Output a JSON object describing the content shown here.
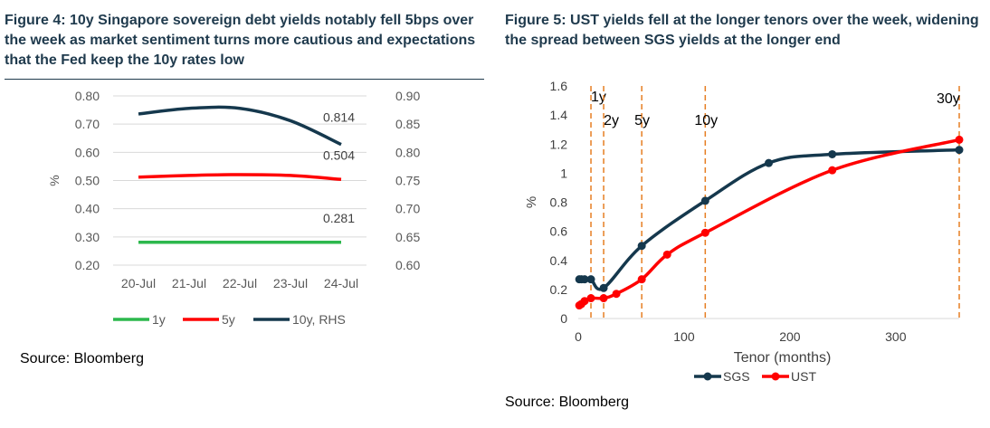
{
  "figure4": {
    "title": "Figure 4: 10y Singapore sovereign debt yields notably fell 5bps over the week as market sentiment turns more cautious and expectations that the Fed keep the 10y rates low",
    "source": "Source: Bloomberg"
  },
  "figure5": {
    "title": "Figure 5: UST yields fell at the longer tenors over the week, widening the spread between SGS yields at the longer end",
    "source": "Source: Bloomberg"
  },
  "chart_data": [
    {
      "type": "line",
      "categories": [
        "20-Jul",
        "21-Jul",
        "22-Jul",
        "23-Jul",
        "24-Jul"
      ],
      "ylabel": "%",
      "ylim": [
        0.2,
        0.8
      ],
      "y_ticks": [
        "0.80",
        "0.70",
        "0.60",
        "0.50",
        "0.40",
        "0.30",
        "0.20"
      ],
      "y2lim": [
        0.6,
        0.9
      ],
      "y2_ticks": [
        "0.90",
        "0.85",
        "0.80",
        "0.75",
        "0.70",
        "0.65",
        "0.60"
      ],
      "grid": true,
      "legend_position": "bottom",
      "series": [
        {
          "name": "1y",
          "axis": "left",
          "color": "#2db84d",
          "values": [
            0.281,
            0.281,
            0.281,
            0.281,
            0.281
          ]
        },
        {
          "name": "5y",
          "axis": "left",
          "color": "#ff0000",
          "values": [
            0.512,
            0.518,
            0.521,
            0.518,
            0.504
          ]
        },
        {
          "name": "10y, RHS",
          "axis": "right",
          "color": "#15384d",
          "values": [
            0.868,
            0.878,
            0.878,
            0.856,
            0.814
          ]
        }
      ],
      "data_labels": [
        {
          "series": "10y, RHS",
          "text": "0.814"
        },
        {
          "series": "5y",
          "text": "0.504"
        },
        {
          "series": "1y",
          "text": "0.281"
        }
      ]
    },
    {
      "type": "line",
      "xlabel": "Tenor (months)",
      "ylabel": "%",
      "xlim": [
        0,
        360
      ],
      "ylim": [
        0,
        1.6
      ],
      "x_ticks": [
        "0",
        "100",
        "200",
        "300"
      ],
      "y_ticks": [
        "1.6",
        "1.4",
        "1.2",
        "1",
        "0.8",
        "0.6",
        "0.4",
        "0.2",
        "0"
      ],
      "grid": false,
      "legend_position": "bottom",
      "series": [
        {
          "name": "SGS",
          "color": "#15384d",
          "x": [
            1,
            3,
            6,
            12,
            24,
            60,
            120,
            180,
            240,
            360
          ],
          "y": [
            0.27,
            0.27,
            0.27,
            0.27,
            0.21,
            0.5,
            0.81,
            1.07,
            1.13,
            1.16
          ]
        },
        {
          "name": "UST",
          "color": "#ff0000",
          "x": [
            1,
            3,
            6,
            12,
            24,
            36,
            60,
            84,
            120,
            240,
            360
          ],
          "y": [
            0.09,
            0.1,
            0.12,
            0.14,
            0.14,
            0.17,
            0.27,
            0.44,
            0.59,
            1.02,
            1.23
          ]
        }
      ],
      "vertical_markers": [
        {
          "label": "1y",
          "x": 12
        },
        {
          "label": "2y",
          "x": 24
        },
        {
          "label": "5y",
          "x": 60
        },
        {
          "label": "10y",
          "x": 120
        },
        {
          "label": "30y",
          "x": 360
        }
      ],
      "marker_color": "#e67e22"
    }
  ]
}
